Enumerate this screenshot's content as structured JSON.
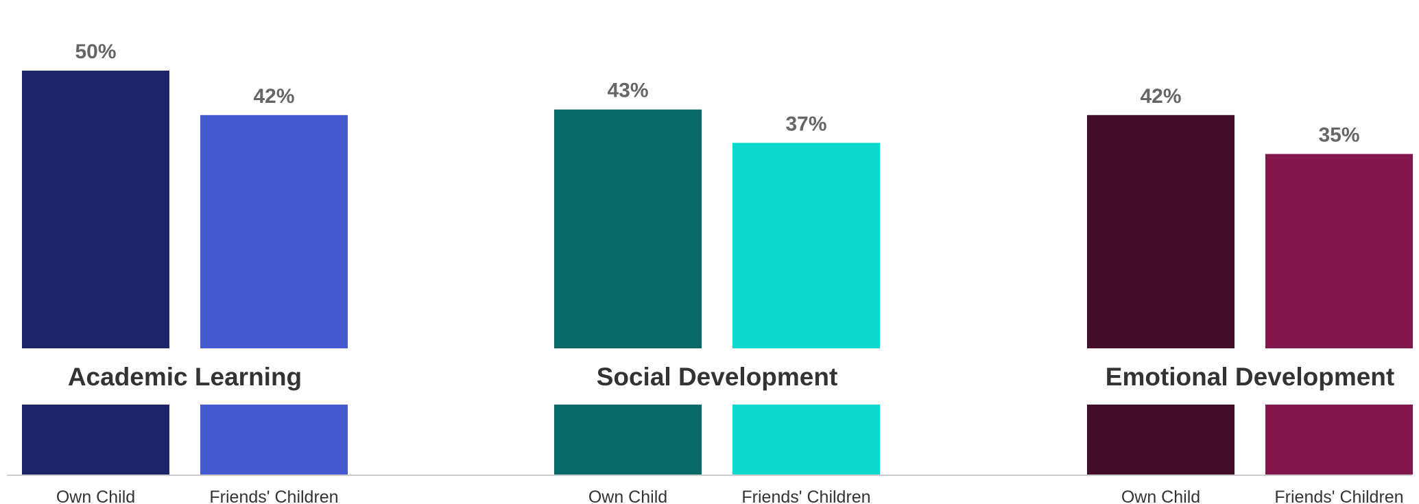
{
  "chart_data": {
    "type": "bar",
    "y_unit": "%",
    "ylim": [
      0,
      50
    ],
    "grid": false,
    "bar_categories": [
      "Own Child",
      "Friends' Children"
    ],
    "groups": [
      {
        "name": "Academic Learning",
        "bars": [
          {
            "label": "Own Child",
            "value": 50,
            "value_label": "50%",
            "color": "#1E2468"
          },
          {
            "label": "Friends' Children",
            "value": 42,
            "value_label": "42%",
            "color": "#4759CF"
          }
        ]
      },
      {
        "name": "Social Development",
        "bars": [
          {
            "label": "Own Child",
            "value": 43,
            "value_label": "43%",
            "color": "#076A66"
          },
          {
            "label": "Friends' Children",
            "value": 37,
            "value_label": "37%",
            "color": "#0FD8CE"
          }
        ]
      },
      {
        "name": "Emotional Development",
        "bars": [
          {
            "label": "Own Child",
            "value": 42,
            "value_label": "42%",
            "color": "#420E27"
          },
          {
            "label": "Friends' Children",
            "value": 35,
            "value_label": "35%",
            "color": "#82174B"
          }
        ]
      }
    ]
  }
}
